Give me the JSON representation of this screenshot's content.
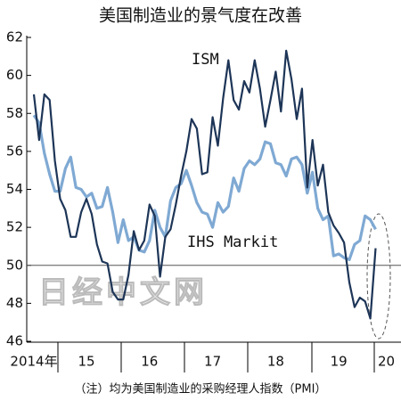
{
  "chart_data": {
    "type": "line",
    "title": "美国制造业的景气度在改善",
    "note": "（注）均为美国制造业的采购经理人指数（PMI）",
    "watermark": "日经中文网",
    "categories": [
      "2014年",
      null,
      null,
      null,
      null,
      null,
      null,
      null,
      null,
      null,
      "15",
      null,
      null,
      null,
      null,
      null,
      null,
      null,
      null,
      null,
      null,
      null,
      "16",
      null,
      null,
      null,
      null,
      null,
      null,
      null,
      null,
      null,
      null,
      null,
      "17",
      null,
      null,
      null,
      null,
      null,
      null,
      null,
      null,
      null,
      null,
      null,
      "18",
      null,
      null,
      null,
      null,
      null,
      null,
      null,
      null,
      null,
      null,
      null,
      "19",
      null,
      null,
      null,
      null,
      null,
      null,
      "20"
    ],
    "series": [
      {
        "name": "ISM",
        "color": "#1d3557",
        "values": [
          59.0,
          56.6,
          59.0,
          58.7,
          55.5,
          53.5,
          52.9,
          51.5,
          51.5,
          52.8,
          53.5,
          52.7,
          51.1,
          50.2,
          50.1,
          48.6,
          48.2,
          48.2,
          49.5,
          51.8,
          50.8,
          51.3,
          53.2,
          52.6,
          49.4,
          51.5,
          51.9,
          53.2,
          54.7,
          56.0,
          57.7,
          57.2,
          54.8,
          54.9,
          57.8,
          56.3,
          58.8,
          60.8,
          58.7,
          58.2,
          59.7,
          59.1,
          60.8,
          59.3,
          57.3,
          58.7,
          60.2,
          58.1,
          61.3,
          59.8,
          57.7,
          59.3,
          54.1,
          56.6,
          54.2,
          55.3,
          52.8,
          52.1,
          51.7,
          51.2,
          49.1,
          47.8,
          48.3,
          48.1,
          47.2,
          50.9
        ]
      },
      {
        "name": "IHS Markit",
        "color": "#7fa9d3",
        "values": [
          57.9,
          57.5,
          55.9,
          54.8,
          53.9,
          53.9,
          55.1,
          55.7,
          54.1,
          54.0,
          53.6,
          53.8,
          53.0,
          53.1,
          54.1,
          52.8,
          51.2,
          52.4,
          51.3,
          51.5,
          50.8,
          50.7,
          51.3,
          52.9,
          52.0,
          51.5,
          53.4,
          54.1,
          54.3,
          55.0,
          54.2,
          53.3,
          52.8,
          52.7,
          52.0,
          53.3,
          52.8,
          53.1,
          54.6,
          53.9,
          55.1,
          55.5,
          55.3,
          55.6,
          56.5,
          56.4,
          55.4,
          55.3,
          54.7,
          55.6,
          55.7,
          55.3,
          53.8,
          54.9,
          53.0,
          52.4,
          52.6,
          50.5,
          50.6,
          50.4,
          50.3,
          51.1,
          51.3,
          52.6,
          52.4,
          51.9
        ]
      }
    ],
    "ylim": [
      46,
      62
    ],
    "yticks": [
      46,
      48,
      50,
      52,
      54,
      56,
      58,
      60,
      62
    ],
    "hline": 50
  }
}
